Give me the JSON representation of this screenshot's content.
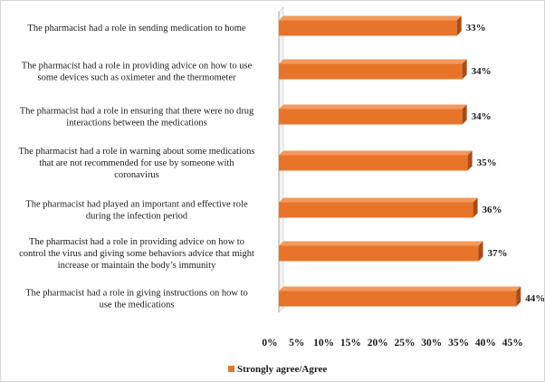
{
  "chart_data": {
    "type": "bar",
    "orientation": "horizontal",
    "categories": [
      [
        "The pharmacist had a role in sending medication to home"
      ],
      [
        "The pharmacist had a role in providing advice on how to use",
        "some devices such as oximeter and the thermometer"
      ],
      [
        "The pharmacist had a role in ensuring that there were no drug",
        "interactions between the medications"
      ],
      [
        "The pharmacist had a role in warning about some medications",
        "that are not recommended for use by someone with",
        "coronavirus"
      ],
      [
        "The pharmacist had played an important and effective role",
        "during the infection period"
      ],
      [
        "The pharmacist had a role in providing advice on how to",
        "control the virus and giving  some behaviors advice that might",
        "increase or maintain the body’s immunity"
      ],
      [
        "The pharmacist had a role in giving instructions on how to",
        "use the medications"
      ]
    ],
    "series": [
      {
        "name": "Strongly agree/Agree",
        "values": [
          33,
          34,
          34,
          35,
          36,
          37,
          44
        ],
        "labels": [
          "33%",
          "34%",
          "34%",
          "35%",
          "36%",
          "37%",
          "44%"
        ]
      }
    ],
    "xticks": [
      "0%",
      "5%",
      "10%",
      "15%",
      "20%",
      "25%",
      "30%",
      "35%",
      "40%",
      "45%"
    ],
    "xlim": [
      0,
      45
    ],
    "grid": false,
    "legend": "bottom",
    "colors": {
      "bar": "#e8742a",
      "bar_top": "#f39a5c",
      "bar_shadow": "#a94d14"
    }
  }
}
